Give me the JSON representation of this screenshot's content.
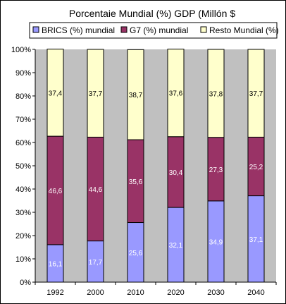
{
  "chart_data": {
    "type": "bar",
    "stacked": true,
    "percent_stacked": true,
    "title": "Porcentaie Mundial (%) GDP  (Millón $",
    "categories": [
      "1992",
      "2000",
      "2010",
      "2020",
      "2030",
      "2040"
    ],
    "series": [
      {
        "name": "BRICS (%) mundial",
        "color": "#9999ff",
        "values": [
          16.1,
          17.7,
          25.6,
          32.1,
          34.9,
          37.1
        ],
        "labels": [
          "16,1",
          "17,7",
          "25,6",
          "32,1",
          "34,9",
          "37,1"
        ]
      },
      {
        "name": "G7 (%) mundial",
        "color": "#993366",
        "values": [
          46.6,
          44.6,
          35.6,
          30.4,
          27.3,
          25.2
        ],
        "labels": [
          "46,6",
          "44,6",
          "35,6",
          "30,4",
          "27,3",
          "25,2"
        ]
      },
      {
        "name": "Resto Mundial (%)",
        "color": "#ffffcc",
        "values": [
          37.4,
          37.7,
          38.7,
          37.6,
          37.8,
          37.7
        ],
        "labels": [
          "37,4",
          "37,7",
          "38,7",
          "37,6",
          "37,8",
          "37,7"
        ]
      }
    ],
    "yticks": [
      "0%",
      "10%",
      "20%",
      "30%",
      "40%",
      "50%",
      "60%",
      "70%",
      "80%",
      "90%",
      "100%"
    ],
    "ylim": [
      0,
      100
    ],
    "grid": false,
    "legend_position": "top",
    "background_color": "#c0c0c0"
  }
}
